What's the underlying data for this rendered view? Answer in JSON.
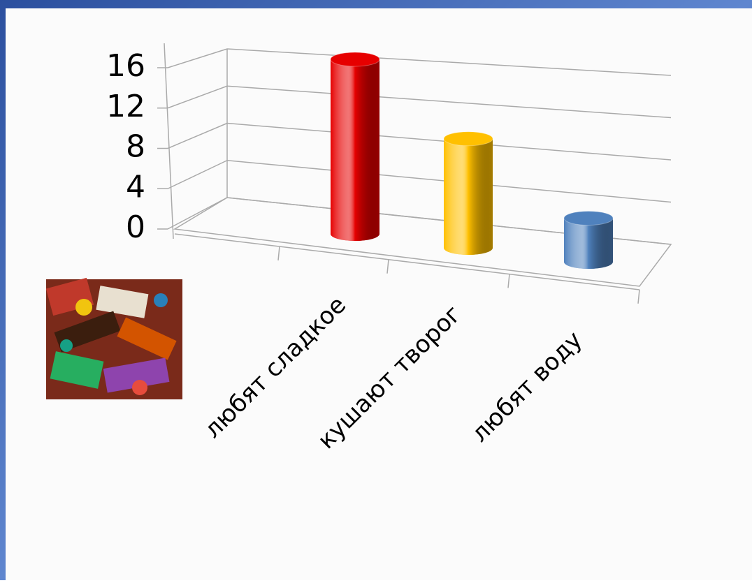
{
  "chart_data": {
    "type": "bar3d",
    "categories": [
      "любят сладкое",
      "кушают творог",
      "любят воду"
    ],
    "values": [
      16,
      10,
      4
    ],
    "colors": [
      "#e60000",
      "#ffc000",
      "#4f81bd"
    ],
    "ylim": [
      0,
      16
    ],
    "yticks": [
      0,
      4,
      8,
      12,
      16
    ],
    "grid": true
  }
}
